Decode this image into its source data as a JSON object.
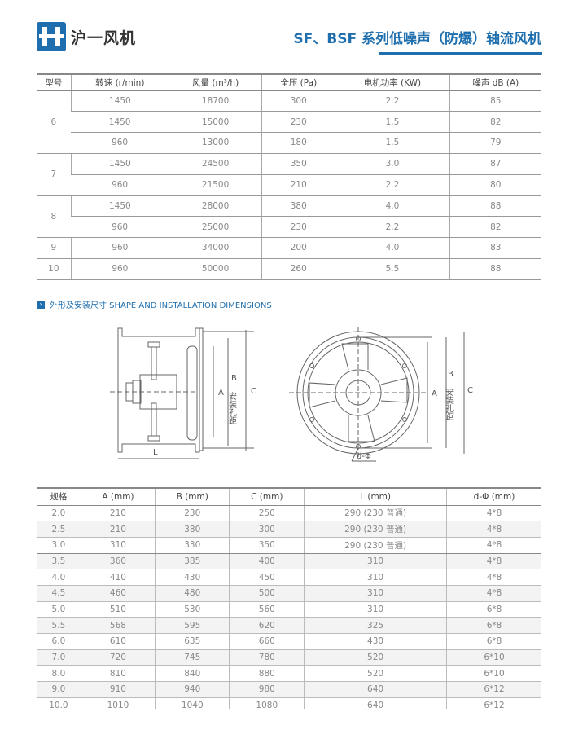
{
  "header": {
    "logo_text": "沪一风机",
    "title": "SF、BSF 系列低噪声（防爆）轴流风机"
  },
  "performance_table": {
    "columns": [
      "型号",
      "转速 (r/min)",
      "风量 (m³/h)",
      "全压 (Pa)",
      "电机功率 (KW)",
      "噪声 dB (A)"
    ],
    "groups": [
      {
        "model": "6",
        "rows": [
          [
            "1450",
            "18700",
            "300",
            "2.2",
            "85"
          ],
          [
            "1450",
            "15000",
            "230",
            "1.5",
            "82"
          ],
          [
            "960",
            "13000",
            "180",
            "1.5",
            "79"
          ]
        ]
      },
      {
        "model": "7",
        "rows": [
          [
            "1450",
            "24500",
            "350",
            "3.0",
            "87"
          ],
          [
            "960",
            "21500",
            "210",
            "2.2",
            "80"
          ]
        ]
      },
      {
        "model": "8",
        "rows": [
          [
            "1450",
            "28000",
            "380",
            "4.0",
            "88"
          ],
          [
            "960",
            "25000",
            "230",
            "2.2",
            "82"
          ]
        ]
      },
      {
        "model": "9",
        "rows": [
          [
            "960",
            "34000",
            "200",
            "4.0",
            "83"
          ]
        ]
      },
      {
        "model": "10",
        "rows": [
          [
            "960",
            "50000",
            "260",
            "5.5",
            "88"
          ]
        ]
      }
    ]
  },
  "section": {
    "icon": "chevron-right-icon",
    "title": "外形及安装尺寸 SHAPE AND INSTALLATION DIMENSIONS"
  },
  "drawing": {
    "labels": {
      "A": "A",
      "B": "B",
      "C": "C",
      "L": "L",
      "hole": "安装孔距",
      "d": "d-Φ"
    }
  },
  "dimension_table": {
    "columns": [
      "规格",
      "A (mm)",
      "B (mm)",
      "C (mm)",
      "L (mm)",
      "d-Φ (mm)"
    ],
    "rows": [
      [
        "2.0",
        "210",
        "230",
        "250",
        "290 (230 普通)",
        "4*8"
      ],
      [
        "2.5",
        "210",
        "380",
        "300",
        "290 (230 普通)",
        "4*8"
      ],
      [
        "3.0",
        "310",
        "330",
        "350",
        "290 (230 普通)",
        "4*8"
      ],
      [
        "3.5",
        "360",
        "385",
        "400",
        "310",
        "4*8"
      ],
      [
        "4.0",
        "410",
        "430",
        "450",
        "310",
        "4*8"
      ],
      [
        "4.5",
        "460",
        "480",
        "500",
        "310",
        "4*8"
      ],
      [
        "5.0",
        "510",
        "530",
        "560",
        "310",
        "6*8"
      ],
      [
        "5.5",
        "568",
        "595",
        "620",
        "325",
        "6*8"
      ],
      [
        "6.0",
        "610",
        "635",
        "660",
        "430",
        "6*8"
      ],
      [
        "7.0",
        "720",
        "745",
        "780",
        "520",
        "6*10"
      ],
      [
        "8.0",
        "810",
        "840",
        "880",
        "520",
        "6*10"
      ],
      [
        "9.0",
        "910",
        "940",
        "980",
        "640",
        "6*12"
      ],
      [
        "10.0",
        "1010",
        "1040",
        "1080",
        "640",
        "6*12"
      ]
    ]
  },
  "colors": {
    "brand": "#1f6fae"
  }
}
